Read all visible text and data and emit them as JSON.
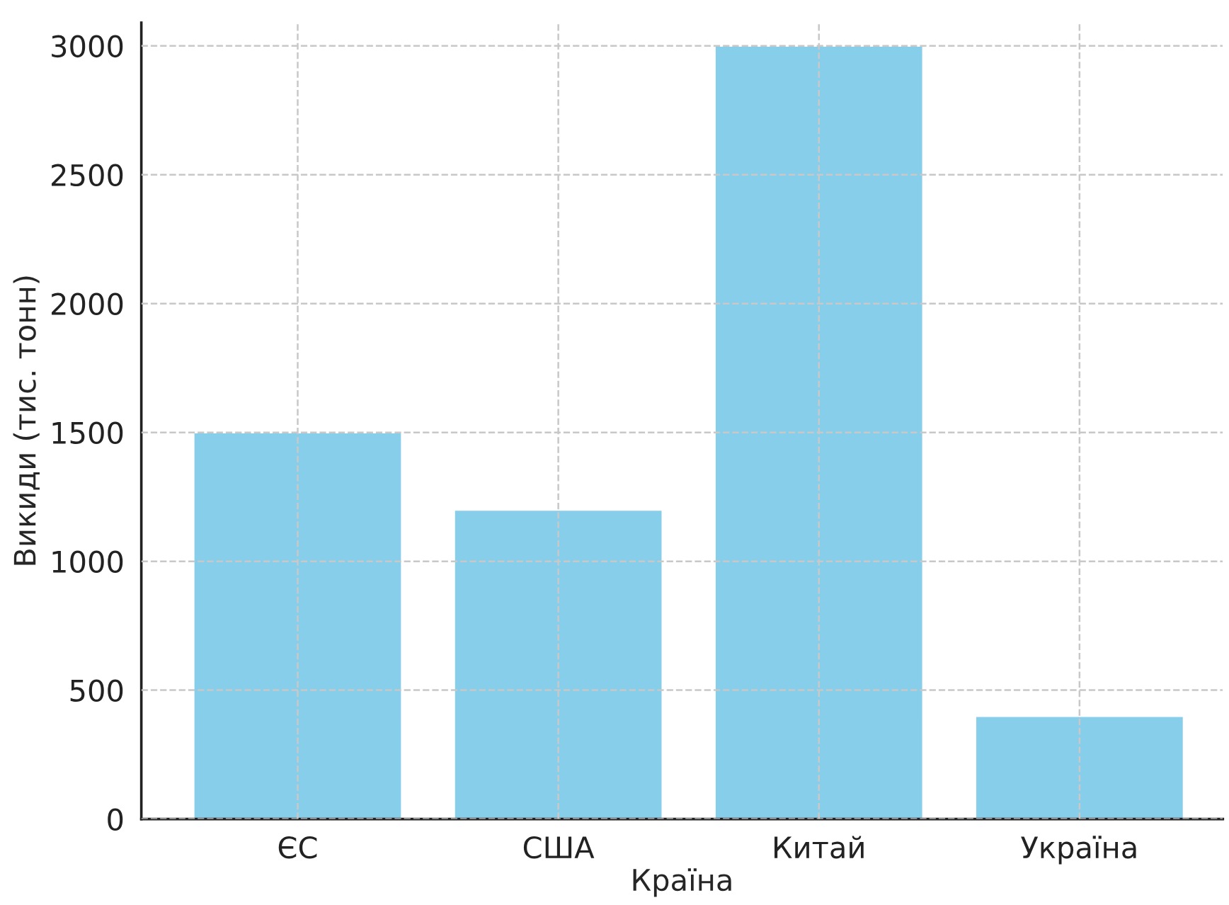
{
  "chart_data": {
    "type": "bar",
    "xlabel": "Країна",
    "ylabel": "Викиди (тис. тонн)",
    "categories": [
      "ЄС",
      "США",
      "Китай",
      "Україна"
    ],
    "series": [
      {
        "color": "#87ceeb",
        "values": [
          1500,
          1200,
          3000,
          400
        ]
      }
    ],
    "ylim": [
      0,
      3090
    ],
    "yticks": [
      0,
      500,
      1000,
      1500,
      2000,
      2500,
      3000
    ],
    "grid": true,
    "line_style": "dashed"
  }
}
